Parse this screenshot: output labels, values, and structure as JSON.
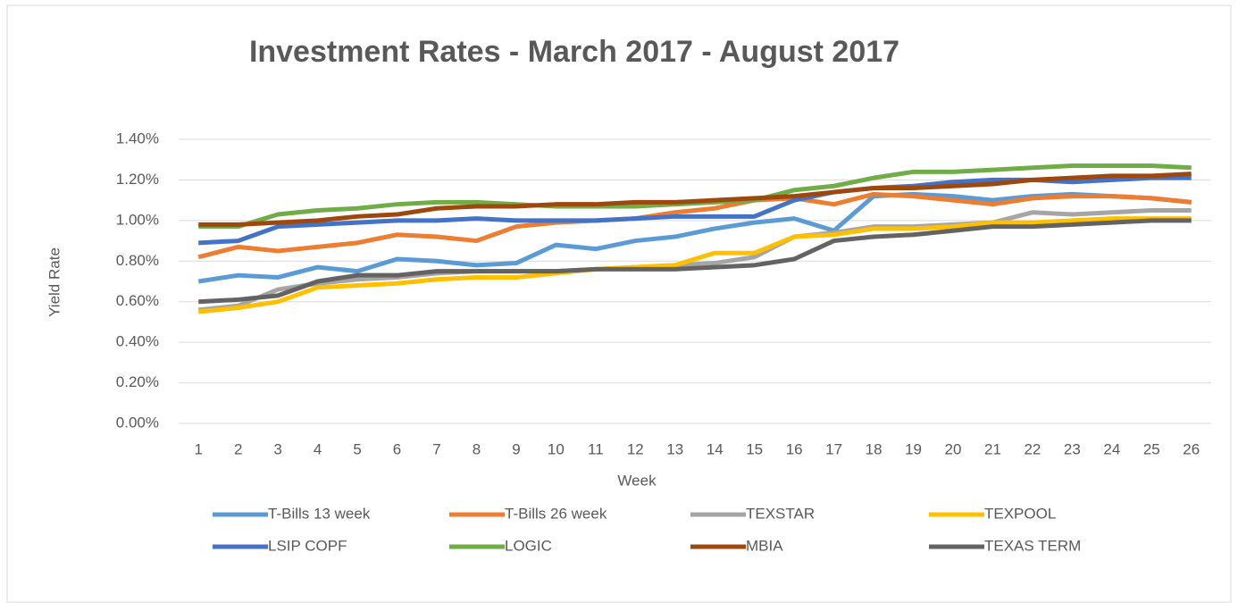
{
  "chart_data": {
    "type": "line",
    "title": "Investment Rates - March 2017 - August 2017",
    "x_label": "Week",
    "y_label": "Yield Rate",
    "categories": [
      1,
      2,
      3,
      4,
      5,
      6,
      7,
      8,
      9,
      10,
      11,
      12,
      13,
      14,
      15,
      16,
      17,
      18,
      19,
      20,
      21,
      22,
      23,
      24,
      25,
      26
    ],
    "ylim": [
      0,
      1.4
    ],
    "yticks": [
      {
        "value": 0,
        "label": "0.00%"
      },
      {
        "value": 0.2,
        "label": "0.20%"
      },
      {
        "value": 0.4,
        "label": "0.40%"
      },
      {
        "value": 0.6,
        "label": "0.60%"
      },
      {
        "value": 0.8,
        "label": "0.80%"
      },
      {
        "value": 1.0,
        "label": "1.00%"
      },
      {
        "value": 1.2,
        "label": "1.20%"
      },
      {
        "value": 1.4,
        "label": "1.40%"
      }
    ],
    "grid": true,
    "legend": "bottom",
    "series": [
      {
        "name": "T-Bills 13 week",
        "color": "#5b9bd5",
        "values": [
          0.7,
          0.73,
          0.72,
          0.77,
          0.75,
          0.81,
          0.8,
          0.78,
          0.79,
          0.88,
          0.86,
          0.9,
          0.92,
          0.96,
          0.99,
          1.01,
          0.95,
          1.12,
          1.13,
          1.12,
          1.1,
          1.12,
          1.13,
          1.12,
          1.11,
          1.09
        ]
      },
      {
        "name": "T-Bills 26 week",
        "color": "#ed7d31",
        "values": [
          0.82,
          0.87,
          0.85,
          0.87,
          0.89,
          0.93,
          0.92,
          0.9,
          0.97,
          0.99,
          1.0,
          1.01,
          1.04,
          1.06,
          1.1,
          1.11,
          1.08,
          1.13,
          1.12,
          1.1,
          1.08,
          1.11,
          1.12,
          1.12,
          1.11,
          1.09
        ]
      },
      {
        "name": "TEXSTAR",
        "color": "#a5a5a5",
        "values": [
          0.56,
          0.58,
          0.66,
          0.69,
          0.71,
          0.72,
          0.74,
          0.75,
          0.75,
          0.75,
          0.76,
          0.77,
          0.78,
          0.79,
          0.82,
          0.92,
          0.94,
          0.97,
          0.97,
          0.98,
          0.99,
          1.04,
          1.03,
          1.04,
          1.05,
          1.05
        ]
      },
      {
        "name": "TEXPOOL",
        "color": "#ffc000",
        "values": [
          0.55,
          0.57,
          0.6,
          0.67,
          0.68,
          0.69,
          0.71,
          0.72,
          0.72,
          0.74,
          0.76,
          0.77,
          0.78,
          0.84,
          0.84,
          0.92,
          0.93,
          0.96,
          0.96,
          0.97,
          0.99,
          0.99,
          1.0,
          1.01,
          1.01,
          1.01
        ]
      },
      {
        "name": "LSIP COPF",
        "color": "#4472c4",
        "values": [
          0.89,
          0.9,
          0.97,
          0.98,
          0.99,
          1.0,
          1.0,
          1.01,
          1.0,
          1.0,
          1.0,
          1.01,
          1.02,
          1.02,
          1.02,
          1.1,
          1.14,
          1.16,
          1.17,
          1.19,
          1.2,
          1.2,
          1.19,
          1.2,
          1.21,
          1.21
        ]
      },
      {
        "name": "LOGIC",
        "color": "#70ad47",
        "values": [
          0.97,
          0.97,
          1.03,
          1.05,
          1.06,
          1.08,
          1.09,
          1.09,
          1.08,
          1.07,
          1.07,
          1.07,
          1.08,
          1.09,
          1.1,
          1.15,
          1.17,
          1.21,
          1.24,
          1.24,
          1.25,
          1.26,
          1.27,
          1.27,
          1.27,
          1.26
        ]
      },
      {
        "name": "MBIA",
        "color": "#9e480e",
        "values": [
          0.98,
          0.98,
          0.99,
          1.0,
          1.02,
          1.03,
          1.06,
          1.07,
          1.07,
          1.08,
          1.08,
          1.09,
          1.09,
          1.1,
          1.11,
          1.12,
          1.14,
          1.16,
          1.16,
          1.17,
          1.18,
          1.2,
          1.21,
          1.22,
          1.22,
          1.23
        ]
      },
      {
        "name": "TEXAS TERM",
        "color": "#636363",
        "values": [
          0.6,
          0.61,
          0.63,
          0.7,
          0.73,
          0.73,
          0.75,
          0.75,
          0.75,
          0.75,
          0.76,
          0.76,
          0.76,
          0.77,
          0.78,
          0.81,
          0.9,
          0.92,
          0.93,
          0.95,
          0.97,
          0.97,
          0.98,
          0.99,
          1.0,
          1.0
        ]
      }
    ]
  }
}
